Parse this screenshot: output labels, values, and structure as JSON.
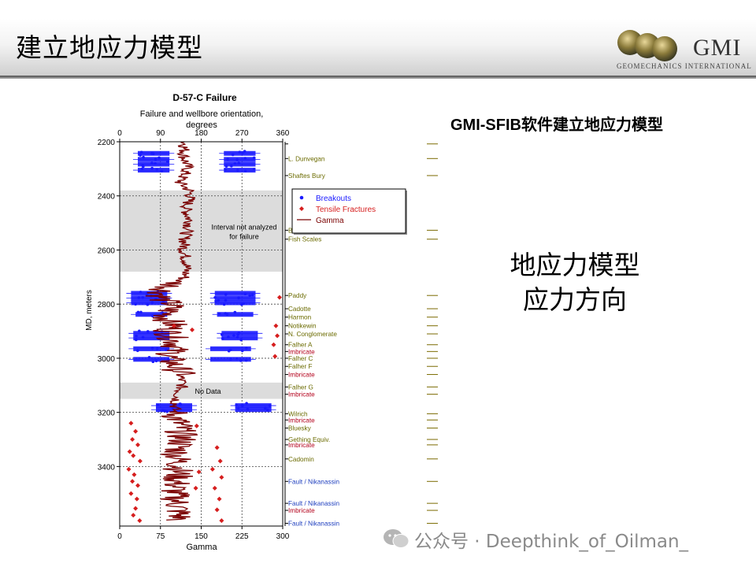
{
  "slide": {
    "title": "建立地应力模型",
    "logo": {
      "name": "GMI",
      "subtitle": "GEOMECHANICS INTERNATIONAL"
    },
    "subtitle": "GMI-SFIB软件建立地应力模型",
    "big_text": [
      "地应力模型",
      "应力方向"
    ],
    "watermark": "公众号 · Deepthink_of_Oilman_"
  },
  "colors": {
    "breakouts": "#1a1aff",
    "tensile": "#d61e1e",
    "gamma": "#7a0000",
    "shade": "#dcdcdc",
    "formation": "#6b6b00",
    "imbricate": "#b3001b",
    "fault": "#1f3fbf"
  },
  "chart_data": {
    "type": "scatter",
    "title": "D-57-C Failure",
    "top_axis_label": "Failure and wellbore orientation,",
    "top_axis_label2": "degrees",
    "top_ticks": [
      "0",
      "90",
      "180",
      "270",
      "360"
    ],
    "bottom_axis_label": "Gamma",
    "bottom_ticks": [
      "0",
      "75",
      "150",
      "225",
      "300"
    ],
    "ylabel": "MD, meters",
    "y_ticks": [
      "2200",
      "2400",
      "2600",
      "2800",
      "3000",
      "3200",
      "3400"
    ],
    "ylim": [
      2200,
      3620
    ],
    "top_xlim": [
      0,
      360
    ],
    "bottom_xlim": [
      0,
      300
    ],
    "grid": true,
    "legend": {
      "position": "right-center",
      "entries": [
        {
          "name": "Breakouts",
          "kind": "dot"
        },
        {
          "name": "Tensile Fractures",
          "kind": "diamond"
        },
        {
          "name": "Gamma",
          "kind": "line"
        }
      ]
    },
    "shaded_intervals": [
      {
        "from": 2380,
        "to": 2680,
        "label": [
          "Interval not analyzed",
          "for failure"
        ]
      },
      {
        "from": 3090,
        "to": 3150,
        "label": [
          "No Data"
        ]
      }
    ],
    "breakout_bands": [
      {
        "md": 2243,
        "ranges": [
          [
            40,
            110
          ],
          [
            230,
            300
          ]
        ]
      },
      {
        "md": 2265,
        "ranges": [
          [
            40,
            110
          ],
          [
            230,
            300
          ]
        ]
      },
      {
        "md": 2283,
        "ranges": [
          [
            40,
            110
          ],
          [
            230,
            300
          ]
        ]
      },
      {
        "md": 2305,
        "ranges": [
          [
            40,
            110
          ],
          [
            230,
            300
          ]
        ]
      },
      {
        "md": 2760,
        "ranges": [
          [
            25,
            105
          ],
          [
            210,
            300
          ]
        ]
      },
      {
        "md": 2778,
        "ranges": [
          [
            25,
            105
          ],
          [
            210,
            300
          ]
        ]
      },
      {
        "md": 2795,
        "ranges": [
          [
            25,
            105
          ],
          [
            210,
            300
          ]
        ]
      },
      {
        "md": 2838,
        "ranges": [
          [
            35,
            105
          ],
          [
            215,
            295
          ]
        ]
      },
      {
        "md": 2908,
        "ranges": [
          [
            30,
            110
          ],
          [
            225,
            305
          ]
        ]
      },
      {
        "md": 2925,
        "ranges": [
          [
            30,
            110
          ],
          [
            225,
            305
          ]
        ]
      },
      {
        "md": 2965,
        "ranges": [
          [
            30,
            110
          ],
          [
            200,
            290
          ]
        ]
      },
      {
        "md": 3004,
        "ranges": [
          [
            30,
            110
          ],
          [
            200,
            290
          ]
        ]
      },
      {
        "md": 3175,
        "ranges": [
          [
            80,
            160
          ],
          [
            255,
            335
          ]
        ]
      },
      {
        "md": 3190,
        "ranges": [
          [
            80,
            160
          ],
          [
            255,
            335
          ]
        ]
      }
    ],
    "tensile_fractures": [
      [
        353,
        2775
      ],
      [
        345,
        2880
      ],
      [
        348,
        2917
      ],
      [
        340,
        2950
      ],
      [
        343,
        2993
      ],
      [
        120,
        2880
      ],
      [
        160,
        2895
      ],
      [
        25,
        3240
      ],
      [
        35,
        3270
      ],
      [
        28,
        3300
      ],
      [
        40,
        3320
      ],
      [
        22,
        3345
      ],
      [
        30,
        3360
      ],
      [
        45,
        3380
      ],
      [
        20,
        3410
      ],
      [
        32,
        3430
      ],
      [
        28,
        3455
      ],
      [
        40,
        3470
      ],
      [
        25,
        3500
      ],
      [
        38,
        3520
      ],
      [
        35,
        3555
      ],
      [
        30,
        3580
      ],
      [
        44,
        3600
      ],
      [
        215,
        3330
      ],
      [
        222,
        3380
      ],
      [
        205,
        3410
      ],
      [
        225,
        3440
      ],
      [
        210,
        3480
      ],
      [
        220,
        3520
      ],
      [
        215,
        3560
      ],
      [
        225,
        3600
      ],
      [
        170,
        3250
      ],
      [
        175,
        3420
      ],
      [
        168,
        3480
      ]
    ],
    "gamma_trend": [
      [
        2200,
        120
      ],
      [
        2250,
        118
      ],
      [
        2300,
        125
      ],
      [
        2350,
        110
      ],
      [
        2380,
        128
      ],
      [
        2400,
        130
      ],
      [
        2450,
        122
      ],
      [
        2500,
        130
      ],
      [
        2550,
        120
      ],
      [
        2600,
        118
      ],
      [
        2650,
        124
      ],
      [
        2700,
        120
      ],
      [
        2750,
        80
      ],
      [
        2780,
        75
      ],
      [
        2800,
        95
      ],
      [
        2850,
        85
      ],
      [
        2880,
        100
      ],
      [
        2900,
        90
      ],
      [
        2950,
        105
      ],
      [
        3000,
        90
      ],
      [
        3050,
        110
      ],
      [
        3100,
        115
      ],
      [
        3150,
        105
      ],
      [
        3200,
        100
      ],
      [
        3250,
        110
      ],
      [
        3300,
        115
      ],
      [
        3350,
        105
      ],
      [
        3400,
        110
      ],
      [
        3450,
        105
      ],
      [
        3500,
        100
      ],
      [
        3550,
        108
      ],
      [
        3600,
        110
      ]
    ],
    "formation_tops": [
      {
        "md": 2208,
        "label": "",
        "color": "formation"
      },
      {
        "md": 2262,
        "label": "L. Dunvegan",
        "color": "formation"
      },
      {
        "md": 2325,
        "label": "Shaftes Bury",
        "color": "formation"
      },
      {
        "md": 2527,
        "label": "Bury",
        "color": "formation"
      },
      {
        "md": 2560,
        "label": "Fish Scales",
        "color": "formation"
      },
      {
        "md": 2768,
        "label": "Paddy",
        "color": "formation"
      },
      {
        "md": 2817,
        "label": "Cadotte",
        "color": "formation"
      },
      {
        "md": 2848,
        "label": "Harmon",
        "color": "formation"
      },
      {
        "md": 2880,
        "label": "Notikewin",
        "color": "formation"
      },
      {
        "md": 2910,
        "label": "N. Conglomerate",
        "color": "formation"
      },
      {
        "md": 2950,
        "label": "Falher A",
        "color": "formation"
      },
      {
        "md": 2975,
        "label": "Imbricate",
        "color": "imbricate"
      },
      {
        "md": 3000,
        "label": "Falher C",
        "color": "formation"
      },
      {
        "md": 3030,
        "label": "Falher F",
        "color": "formation"
      },
      {
        "md": 3060,
        "label": "Imbricate",
        "color": "imbricate"
      },
      {
        "md": 3106,
        "label": "Falher G",
        "color": "formation"
      },
      {
        "md": 3133,
        "label": "Imbricate",
        "color": "imbricate"
      },
      {
        "md": 3205,
        "label": "Wilrich",
        "color": "formation"
      },
      {
        "md": 3228,
        "label": "Imbricate",
        "color": "imbricate"
      },
      {
        "md": 3258,
        "label": "Bluesky",
        "color": "formation"
      },
      {
        "md": 3300,
        "label": "Gething Equiv.",
        "color": "formation"
      },
      {
        "md": 3320,
        "label": "Imbricate",
        "color": "imbricate"
      },
      {
        "md": 3372,
        "label": "Cadomin",
        "color": "formation"
      },
      {
        "md": 3455,
        "label": "Fault / Nikanassin",
        "color": "fault"
      },
      {
        "md": 3536,
        "label": "Fault / Nikanassin",
        "color": "fault"
      },
      {
        "md": 3562,
        "label": "Imbricate",
        "color": "imbricate"
      },
      {
        "md": 3610,
        "label": "Fault / Nikanassin",
        "color": "fault"
      }
    ]
  }
}
